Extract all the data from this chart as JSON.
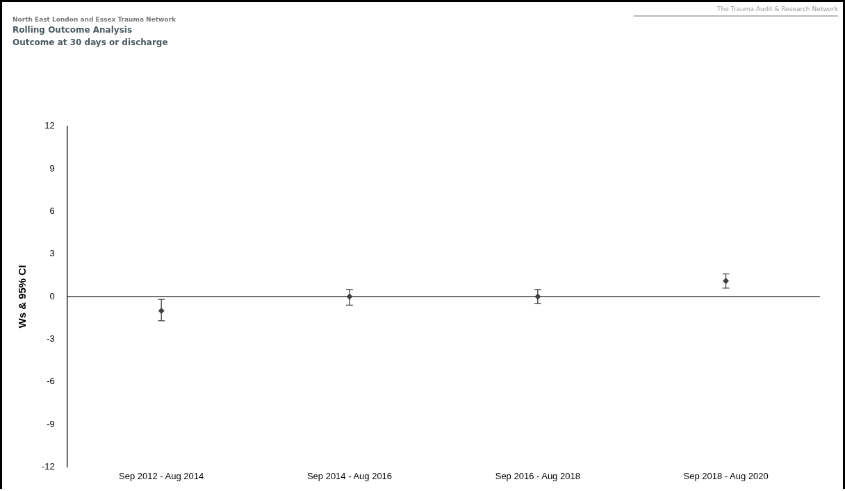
{
  "chart_data": {
    "type": "scatter",
    "title": "Rolling Outcome Analysis",
    "subtitle": "Outcome at 30 days or discharge",
    "ylabel": "Ws & 95% CI",
    "annotations": [
      "North East London and Essex Trauma Network",
      "The Trauma Audit & Research Network"
    ],
    "categories": [
      "Sep 2012 - Aug 2014",
      "Sep 2014 - Aug 2016",
      "Sep 2016 - Aug 2018",
      "Sep 2018 - Aug 2020"
    ],
    "series": [
      {
        "color": "#404040",
        "values": [
          -1.0,
          0,
          0,
          1.1
        ],
        "errors": [
          [
            -1.7,
            -0.2
          ],
          [
            -0.6,
            0.5
          ],
          [
            -0.5,
            0.5
          ],
          [
            0.6,
            1.6
          ]
        ]
      }
    ],
    "ylim": [
      -12,
      12
    ],
    "yticks": [
      -12,
      -9,
      -6,
      -3,
      0,
      3,
      6,
      9,
      12
    ],
    "grid": false,
    "legend": false,
    "marker": "diamond",
    "ref_lines": [
      {
        "axis": "y",
        "value": 0,
        "color": "#404040"
      }
    ]
  }
}
